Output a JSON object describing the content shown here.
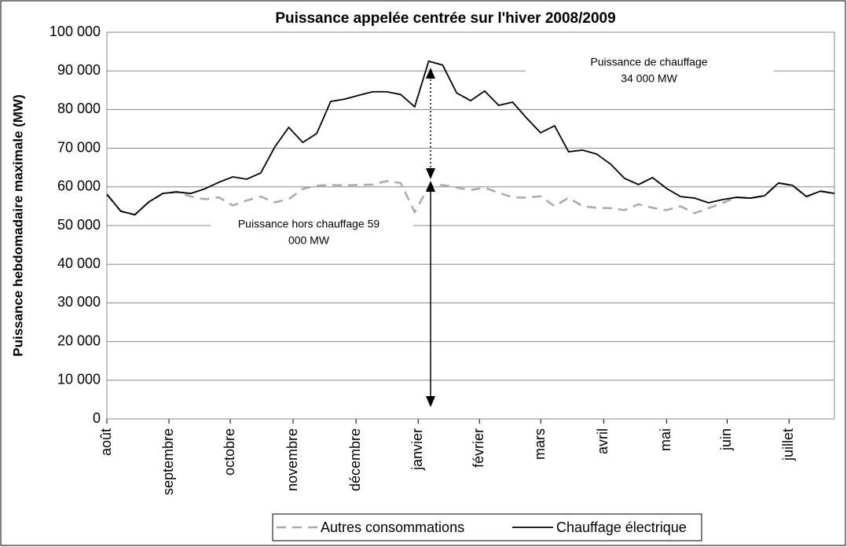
{
  "chart_data": {
    "type": "line",
    "title": "Puissance appelée centrée sur l'hiver 2008/2009",
    "ylabel": "Puissance hebdomadaire maximale (MW)",
    "x": [
      0,
      1,
      2,
      3,
      4,
      5,
      6,
      7,
      8,
      9,
      10,
      11,
      12,
      13,
      14,
      15,
      16,
      17,
      18,
      19,
      20,
      21,
      22,
      23,
      24,
      25,
      26,
      27,
      28,
      29,
      30,
      31,
      32,
      33,
      34,
      35,
      36,
      37,
      38,
      39,
      40,
      41,
      42,
      43,
      44,
      45,
      46,
      47,
      48,
      49,
      50,
      51,
      52
    ],
    "xlim": [
      0,
      52
    ],
    "xticks": [
      {
        "value": 0,
        "label": "août"
      },
      {
        "value": 4.44,
        "label": "septembre"
      },
      {
        "value": 8.82,
        "label": "octobre"
      },
      {
        "value": 13.31,
        "label": "novembre"
      },
      {
        "value": 17.81,
        "label": "décembre"
      },
      {
        "value": 22.25,
        "label": "janvier"
      },
      {
        "value": 26.63,
        "label": "février"
      },
      {
        "value": 31.01,
        "label": "mars"
      },
      {
        "value": 35.51,
        "label": "avril"
      },
      {
        "value": 40,
        "label": "mai"
      },
      {
        "value": 44.33,
        "label": "juin"
      },
      {
        "value": 48.76,
        "label": "juillet"
      }
    ],
    "ylim": [
      0,
      100000
    ],
    "yticks": [
      0,
      {
        "value": 10000,
        "label": "10 000"
      },
      {
        "value": 20000,
        "label": "20 000"
      },
      {
        "value": 30000,
        "label": "30 000"
      },
      {
        "value": 40000,
        "label": "40 000"
      },
      {
        "value": 50000,
        "label": "50 000"
      },
      {
        "value": 60000,
        "label": "60 000"
      },
      {
        "value": 70000,
        "label": "70 000"
      },
      {
        "value": 80000,
        "label": "80 000"
      },
      {
        "value": 90000,
        "label": "90 000"
      },
      {
        "value": 100000,
        "label": "100 000"
      }
    ],
    "grid": true,
    "series": [
      {
        "name": "Autres consommations",
        "color": "#aaaaaa",
        "dashed": true,
        "values": [
          58100,
          53700,
          52800,
          56100,
          58300,
          58700,
          57500,
          56800,
          57300,
          55200,
          56500,
          57500,
          56000,
          56800,
          59500,
          60300,
          60500,
          60400,
          60500,
          60600,
          61500,
          61000,
          53500,
          60000,
          60500,
          59800,
          59200,
          59800,
          58500,
          57300,
          57200,
          57600,
          55000,
          57200,
          55000,
          54600,
          54500,
          54000,
          55500,
          54600,
          54000,
          55000,
          53200,
          54500,
          55800,
          57300,
          57100,
          57700,
          61000,
          60400,
          57500,
          58900,
          58300
        ]
      },
      {
        "name": "Chauffage électrique",
        "color": "#000000",
        "dashed": false,
        "values": [
          58100,
          53700,
          52800,
          56100,
          58300,
          58700,
          58300,
          59500,
          61200,
          62600,
          62000,
          63600,
          70300,
          75400,
          71500,
          73800,
          82100,
          82700,
          83700,
          84600,
          84600,
          83900,
          80700,
          92500,
          91500,
          84300,
          82300,
          84800,
          81100,
          81900,
          77800,
          74000,
          75800,
          69100,
          69500,
          68500,
          65900,
          62200,
          60600,
          62400,
          59600,
          57500,
          57100,
          55900,
          56700,
          57300,
          57100,
          57700,
          61000,
          60400,
          57500,
          58900,
          58300
        ]
      }
    ],
    "annotations": [
      [
        "Puissance de chauffage",
        "34 000 MW"
      ],
      [
        "Puissance hors chauffage   59",
        "000 MW"
      ]
    ]
  }
}
